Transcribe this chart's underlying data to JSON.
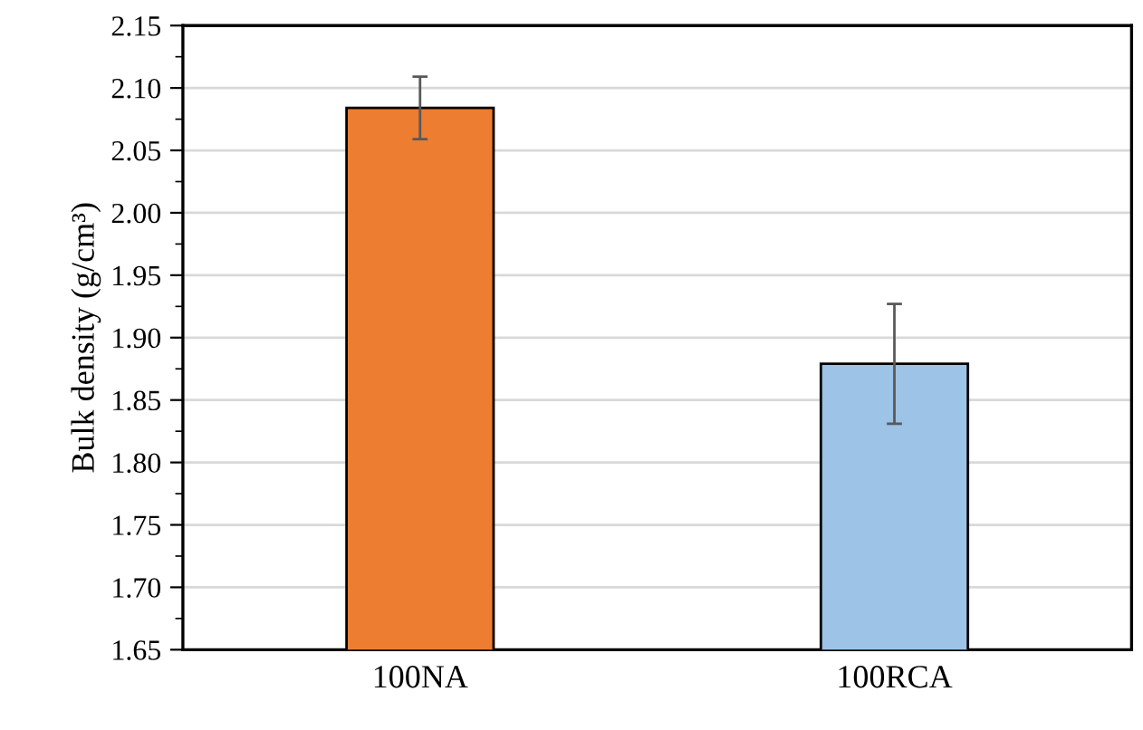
{
  "chart_data": {
    "type": "bar",
    "ylabel": "Bulk density (g/cm³)",
    "categories": [
      "100NA",
      "100RCA"
    ],
    "values": [
      2.084,
      1.879
    ],
    "colors": [
      "#ed7d31",
      "#9dc3e6"
    ],
    "errors": [
      0.025,
      0.048
    ],
    "ylim": [
      1.65,
      2.15
    ],
    "yticks": [
      {
        "value": 1.65,
        "label": "1.65"
      },
      {
        "value": 1.7,
        "label": "1.70"
      },
      {
        "value": 1.75,
        "label": "1.75"
      },
      {
        "value": 1.8,
        "label": "1.80"
      },
      {
        "value": 1.85,
        "label": "1.85"
      },
      {
        "value": 1.9,
        "label": "1.90"
      },
      {
        "value": 1.95,
        "label": "1.95"
      },
      {
        "value": 2.0,
        "label": "2.00"
      },
      {
        "value": 2.05,
        "label": "2.05"
      },
      {
        "value": 2.1,
        "label": "2.10"
      },
      {
        "value": 2.15,
        "label": "2.15"
      }
    ],
    "grid": "y"
  }
}
